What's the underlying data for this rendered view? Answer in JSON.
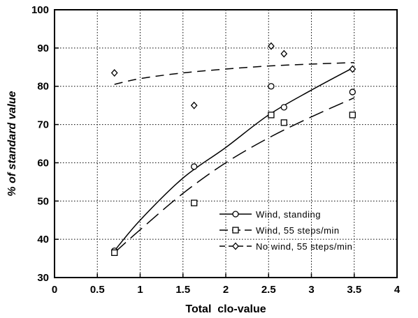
{
  "chart_data": {
    "type": "scatter",
    "xlabel": "Total  clo-value",
    "ylabel": "% of standard value",
    "xlim": [
      0,
      4
    ],
    "ylim": [
      30,
      100
    ],
    "x_ticks": [
      "0",
      "0.5",
      "1",
      "1.5",
      "2",
      "2.5",
      "3",
      "3.5",
      "4"
    ],
    "y_ticks": [
      "30",
      "40",
      "50",
      "60",
      "70",
      "80",
      "90",
      "100"
    ],
    "grid": true,
    "legend_position": "bottom-right",
    "series": [
      {
        "name": "Wind, standing",
        "marker": "circle",
        "line_style": "solid",
        "points": [
          [
            0.7,
            37
          ],
          [
            1.63,
            59
          ],
          [
            2.53,
            80
          ],
          [
            2.68,
            74.5
          ],
          [
            3.48,
            78.5
          ]
        ],
        "fit": [
          [
            0.7,
            37
          ],
          [
            1.0,
            45
          ],
          [
            1.5,
            56
          ],
          [
            2.0,
            64
          ],
          [
            2.5,
            72.5
          ],
          [
            3.0,
            79
          ],
          [
            3.5,
            85
          ]
        ]
      },
      {
        "name": "Wind, 55 steps/min",
        "marker": "square",
        "line_style": "long-dash",
        "points": [
          [
            0.7,
            36.5
          ],
          [
            1.63,
            49.5
          ],
          [
            2.53,
            72.5
          ],
          [
            2.68,
            70.5
          ],
          [
            3.48,
            72.5
          ]
        ],
        "fit": [
          [
            0.7,
            36.5
          ],
          [
            1.0,
            42.5
          ],
          [
            1.5,
            52
          ],
          [
            2.0,
            60
          ],
          [
            2.5,
            66.5
          ],
          [
            3.0,
            72
          ],
          [
            3.5,
            77
          ]
        ]
      },
      {
        "name": "No wind, 55 steps/min",
        "marker": "diamond",
        "line_style": "dash",
        "points": [
          [
            0.7,
            83.5
          ],
          [
            1.63,
            75
          ],
          [
            2.53,
            90.5
          ],
          [
            2.68,
            88.5
          ],
          [
            3.48,
            84.5
          ]
        ],
        "fit": [
          [
            0.7,
            80.5
          ],
          [
            1.0,
            82
          ],
          [
            1.5,
            83.5
          ],
          [
            2.0,
            84.5
          ],
          [
            2.5,
            85.3
          ],
          [
            3.0,
            85.8
          ],
          [
            3.5,
            86.2
          ]
        ]
      }
    ]
  }
}
